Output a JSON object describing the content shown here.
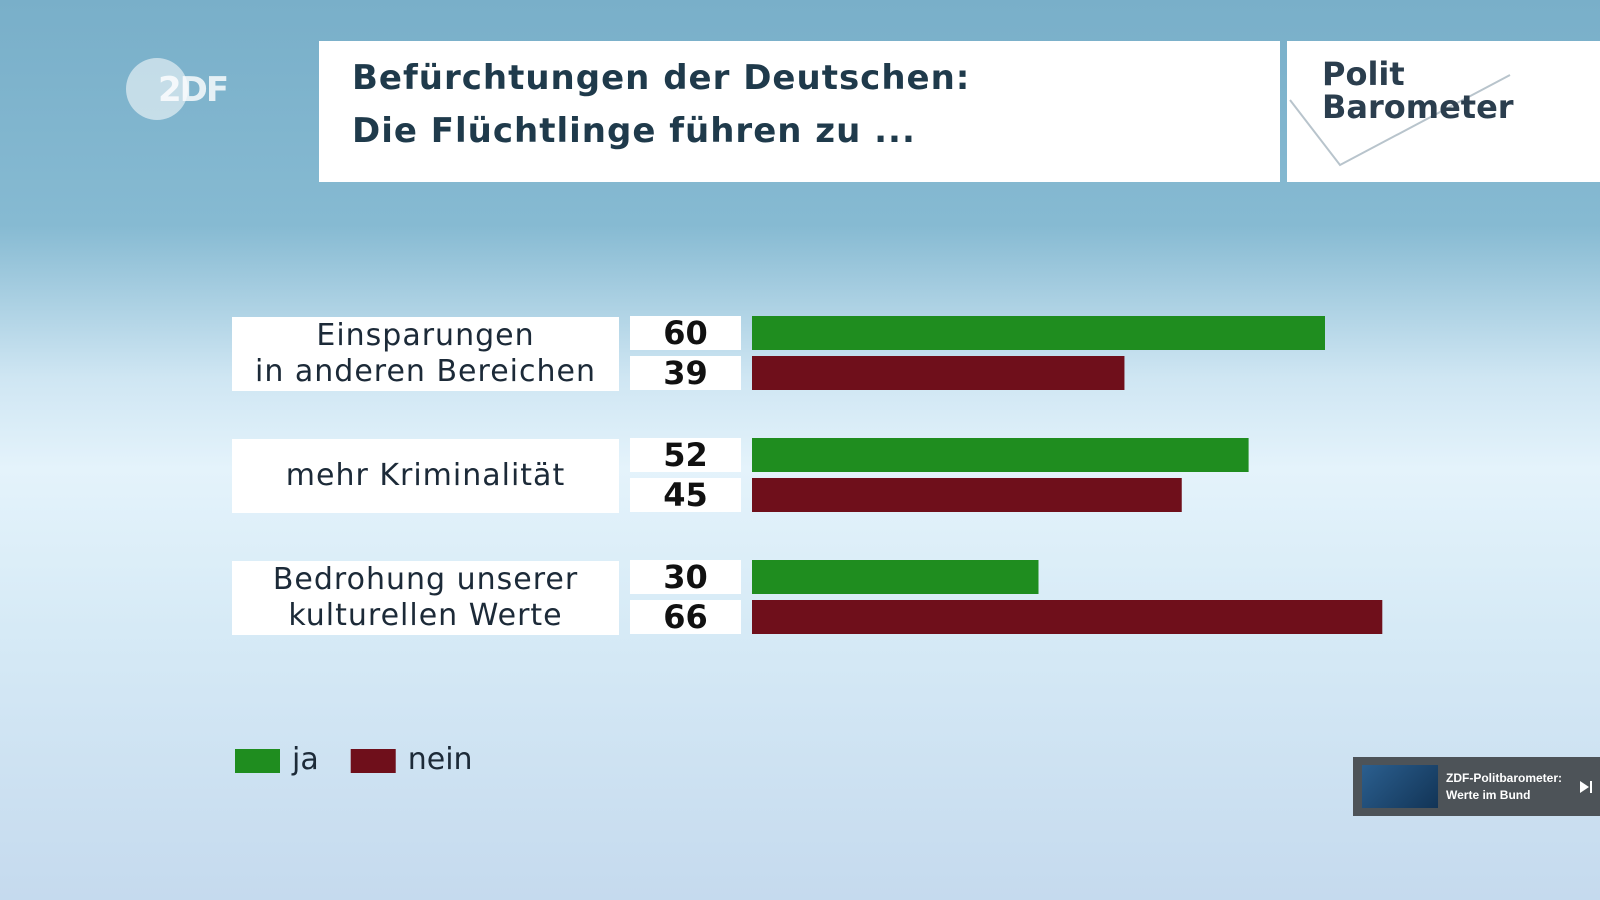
{
  "logo": "2DF",
  "brand": "Polit\nBarometer",
  "overlay": "ZDF-Politbarometer:\nWerte im Bund",
  "chart_data": {
    "type": "bar",
    "title": "Befürchtungen der Deutschen:\nDie Flüchtlinge führen zu ...",
    "categories": [
      "Einsparungen\nin anderen Bereichen",
      "mehr Kriminalität",
      "Bedrohung unserer\nkulturellen Werte"
    ],
    "series": [
      {
        "name": "ja",
        "color": "#1f8d1f",
        "values": [
          60,
          52,
          30
        ]
      },
      {
        "name": "nein",
        "color": "#6f0f1b",
        "values": [
          39,
          45,
          66
        ]
      }
    ],
    "legend": "bottom-left"
  }
}
